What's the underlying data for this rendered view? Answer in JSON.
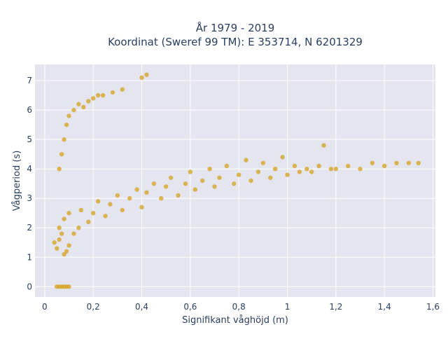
{
  "chart_data": {
    "type": "scatter",
    "title_line1": "År 1979 - 2019",
    "title_line2": "Koordinat (Sweref 99 TM): E 353714, N 6201329",
    "xlabel": "Signifikant våghöjd (m)",
    "ylabel": "Vågperiod (s)",
    "xlim": [
      -0.04,
      1.61
    ],
    "ylim": [
      -0.35,
      7.55
    ],
    "x_ticks": [
      0,
      0.2,
      0.4,
      0.6,
      0.8,
      1,
      1.2,
      1.4,
      1.6
    ],
    "x_tick_labels": [
      "0",
      "0,2",
      "0,4",
      "0,6",
      "0,8",
      "1",
      "1,2",
      "1,4",
      "1,6"
    ],
    "y_ticks": [
      0,
      1,
      2,
      3,
      4,
      5,
      6,
      7
    ],
    "y_tick_labels": [
      "0",
      "1",
      "2",
      "3",
      "4",
      "5",
      "6",
      "7"
    ],
    "grid": true,
    "marker_color": "#d4a21c",
    "plot_bg": "#e5e5ef",
    "series": [
      {
        "values_xy": [
          [
            0.05,
            0
          ],
          [
            0.06,
            0
          ],
          [
            0.07,
            0
          ],
          [
            0.08,
            0
          ],
          [
            0.09,
            0
          ],
          [
            0.1,
            0
          ],
          [
            0.04,
            1.5
          ],
          [
            0.05,
            1.3
          ],
          [
            0.06,
            1.6
          ],
          [
            0.07,
            1.8
          ],
          [
            0.08,
            1.1
          ],
          [
            0.09,
            1.2
          ],
          [
            0.1,
            1.4
          ],
          [
            0.06,
            2.0
          ],
          [
            0.08,
            2.3
          ],
          [
            0.1,
            2.5
          ],
          [
            0.12,
            1.8
          ],
          [
            0.14,
            2.0
          ],
          [
            0.15,
            2.6
          ],
          [
            0.18,
            2.2
          ],
          [
            0.2,
            2.5
          ],
          [
            0.22,
            2.9
          ],
          [
            0.25,
            2.4
          ],
          [
            0.27,
            2.8
          ],
          [
            0.3,
            3.1
          ],
          [
            0.32,
            2.6
          ],
          [
            0.35,
            3.0
          ],
          [
            0.38,
            3.3
          ],
          [
            0.4,
            2.7
          ],
          [
            0.42,
            3.2
          ],
          [
            0.45,
            3.5
          ],
          [
            0.48,
            3.0
          ],
          [
            0.5,
            3.4
          ],
          [
            0.52,
            3.7
          ],
          [
            0.55,
            3.1
          ],
          [
            0.58,
            3.5
          ],
          [
            0.6,
            3.9
          ],
          [
            0.62,
            3.3
          ],
          [
            0.65,
            3.6
          ],
          [
            0.68,
            4.0
          ],
          [
            0.7,
            3.4
          ],
          [
            0.72,
            3.7
          ],
          [
            0.75,
            4.1
          ],
          [
            0.78,
            3.5
          ],
          [
            0.8,
            3.8
          ],
          [
            0.83,
            4.3
          ],
          [
            0.85,
            3.6
          ],
          [
            0.88,
            3.9
          ],
          [
            0.9,
            4.2
          ],
          [
            0.93,
            3.7
          ],
          [
            0.95,
            4.0
          ],
          [
            0.98,
            4.4
          ],
          [
            1.0,
            3.8
          ],
          [
            1.03,
            4.1
          ],
          [
            1.05,
            3.9
          ],
          [
            1.08,
            4.0
          ],
          [
            1.1,
            3.9
          ],
          [
            1.13,
            4.1
          ],
          [
            1.15,
            4.8
          ],
          [
            1.18,
            4.0
          ],
          [
            1.2,
            4.0
          ],
          [
            1.25,
            4.1
          ],
          [
            1.3,
            4.0
          ],
          [
            1.35,
            4.2
          ],
          [
            1.4,
            4.1
          ],
          [
            1.45,
            4.2
          ],
          [
            1.5,
            4.2
          ],
          [
            1.54,
            4.2
          ],
          [
            0.06,
            4.0
          ],
          [
            0.07,
            4.5
          ],
          [
            0.08,
            5.0
          ],
          [
            0.09,
            5.5
          ],
          [
            0.1,
            5.8
          ],
          [
            0.12,
            6.0
          ],
          [
            0.14,
            6.2
          ],
          [
            0.16,
            6.1
          ],
          [
            0.18,
            6.3
          ],
          [
            0.2,
            6.4
          ],
          [
            0.22,
            6.5
          ],
          [
            0.24,
            6.5
          ],
          [
            0.28,
            6.6
          ],
          [
            0.32,
            6.7
          ],
          [
            0.4,
            7.1
          ],
          [
            0.42,
            7.2
          ]
        ]
      }
    ]
  }
}
